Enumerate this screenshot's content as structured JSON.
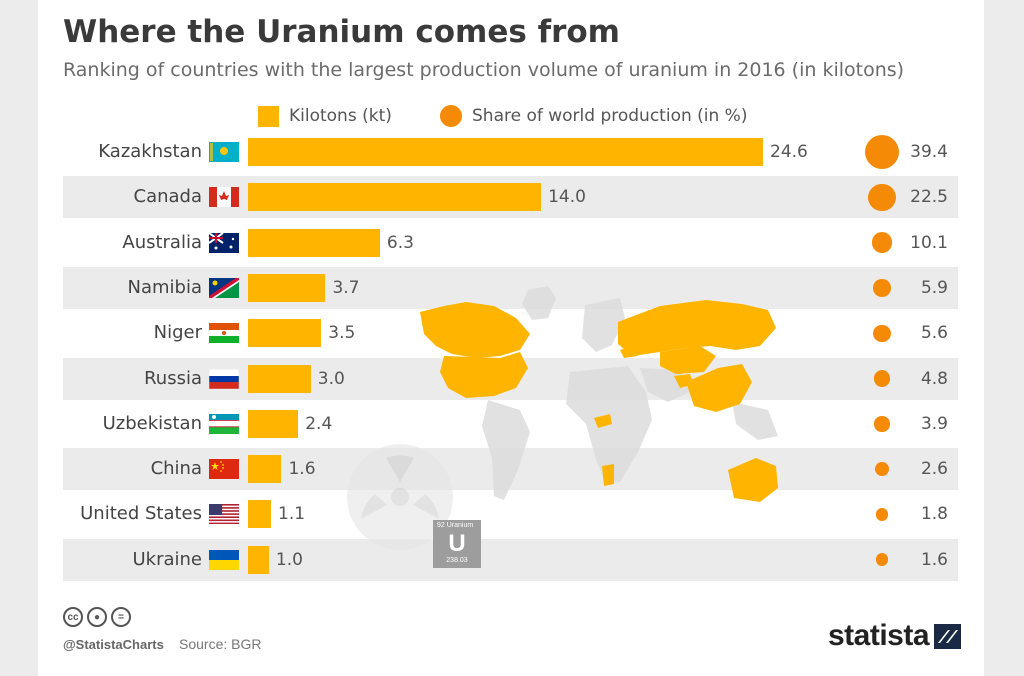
{
  "title": "Where the Uranium comes from",
  "subtitle": "Ranking of countries with the largest production volume of uranium in 2016 (in kilotons)",
  "legend": {
    "kilotons": "Kilotons (kt)",
    "share": "Share of world production (in %)"
  },
  "colors": {
    "bar": "#ffb400",
    "bubble": "#f58a07",
    "band": "#ebebeb",
    "map_highlight": "#ffb400",
    "map_base": "#dcdcdc"
  },
  "chart_data": {
    "type": "bar",
    "categories": [
      "Kazakhstan",
      "Canada",
      "Australia",
      "Namibia",
      "Niger",
      "Russia",
      "Uzbekistan",
      "China",
      "United States",
      "Ukraine"
    ],
    "series": [
      {
        "name": "Kilotons (kt)",
        "values": [
          24.6,
          14.0,
          6.3,
          3.7,
          3.5,
          3.0,
          2.4,
          1.6,
          1.1,
          1.0
        ]
      },
      {
        "name": "Share of world production (in %)",
        "values": [
          39.4,
          22.5,
          10.1,
          5.9,
          5.6,
          4.8,
          3.9,
          2.6,
          1.8,
          1.6
        ]
      }
    ],
    "value_labels": [
      "24.6",
      "14.0",
      "6.3",
      "3.7",
      "3.5",
      "3.0",
      "2.4",
      "1.6",
      "1.1",
      "1.0"
    ],
    "share_labels": [
      "39.4",
      "22.5",
      "10.1",
      "5.9",
      "5.6",
      "4.8",
      "3.9",
      "2.6",
      "1.8",
      "1.6"
    ],
    "flags": [
      "kazakhstan-flag-icon",
      "canada-flag-icon",
      "australia-flag-icon",
      "namibia-flag-icon",
      "niger-flag-icon",
      "russia-flag-icon",
      "uzbekistan-flag-icon",
      "china-flag-icon",
      "united-states-flag-icon",
      "ukraine-flag-icon"
    ],
    "orientation": "horizontal",
    "legend_position": "top",
    "grid": false
  },
  "element_tile": {
    "number_name": "92 Uranium",
    "symbol": "U",
    "mass": "238.03"
  },
  "footer": {
    "license_icons": [
      "creative-commons-icon",
      "attribution-icon",
      "no-derivatives-icon"
    ],
    "handle": "@StatistaCharts",
    "source": "Source: BGR",
    "logo": "statista"
  }
}
